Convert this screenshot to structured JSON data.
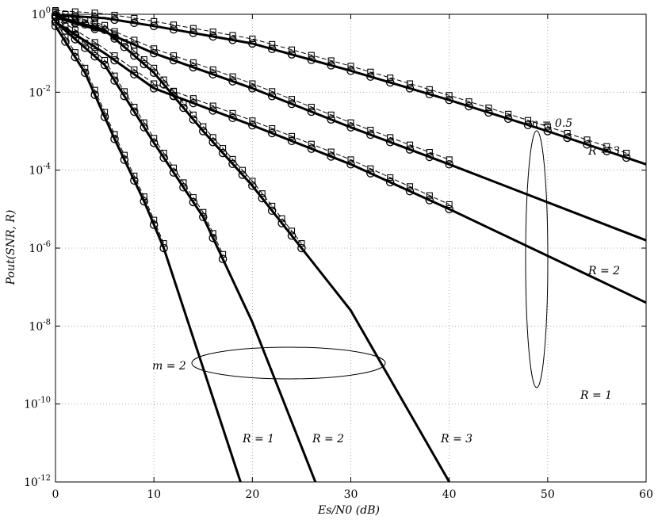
{
  "chart_data": {
    "type": "line",
    "xlabel": "Es/N0 (dB)",
    "ylabel": "Pout(SNR, R)",
    "xlim": [
      0,
      60
    ],
    "ylim_log10": [
      -12,
      0
    ],
    "yscale": "log",
    "grid": true,
    "x_ticks": [
      "0",
      "10",
      "20",
      "30",
      "40",
      "50",
      "60"
    ],
    "y_ticks": [
      "10^0",
      "10^-2",
      "10^-4",
      "10^-6",
      "10^-8",
      "10^-10",
      "10^-12"
    ],
    "annotations": {
      "m_low": "m = 0.5",
      "m_high": "m = 2",
      "r3_low": "R = 3",
      "r2_low": "R = 2",
      "r1_low": "R = 1",
      "r1_high": "R = 1",
      "r2_high": "R = 2",
      "r3_high": "R = 3"
    },
    "series": [
      {
        "group": "m=0.5, R=3",
        "x": [
          0,
          5,
          10,
          20,
          30,
          40,
          50,
          60
        ],
        "log10_y": [
          -0.02,
          -0.1,
          -0.3,
          -0.75,
          -1.45,
          -2.2,
          -3.0,
          -3.85
        ]
      },
      {
        "group": "m=0.5, R=2",
        "x": [
          0,
          5,
          10,
          20,
          30,
          40,
          60
        ],
        "log10_y": [
          -0.08,
          -0.45,
          -1.0,
          -1.9,
          -2.9,
          -3.85,
          -5.8
        ]
      },
      {
        "group": "m=0.5, R=1",
        "x": [
          0,
          5,
          10,
          20,
          30,
          40,
          60
        ],
        "log10_y": [
          -0.2,
          -1.0,
          -1.9,
          -2.85,
          -3.85,
          -5.0,
          -7.4
        ]
      },
      {
        "group": "m=2, R=3",
        "x": [
          0,
          5,
          10,
          15,
          20,
          25,
          30,
          40
        ],
        "log10_y": [
          -0.05,
          -0.4,
          -1.5,
          -3.0,
          -4.4,
          -6.0,
          -7.6,
          -12.0
        ]
      },
      {
        "group": "m=2, R=2",
        "x": [
          0,
          5,
          10,
          15,
          20,
          26.4
        ],
        "log10_y": [
          -0.2,
          -1.3,
          -3.3,
          -5.2,
          -7.9,
          -12.0
        ]
      },
      {
        "group": "m=2, R=1",
        "x": [
          0,
          3,
          6,
          9,
          11,
          18.8
        ],
        "log10_y": [
          -0.3,
          -1.5,
          -3.2,
          -4.8,
          -6.0,
          -12.0
        ]
      }
    ]
  }
}
